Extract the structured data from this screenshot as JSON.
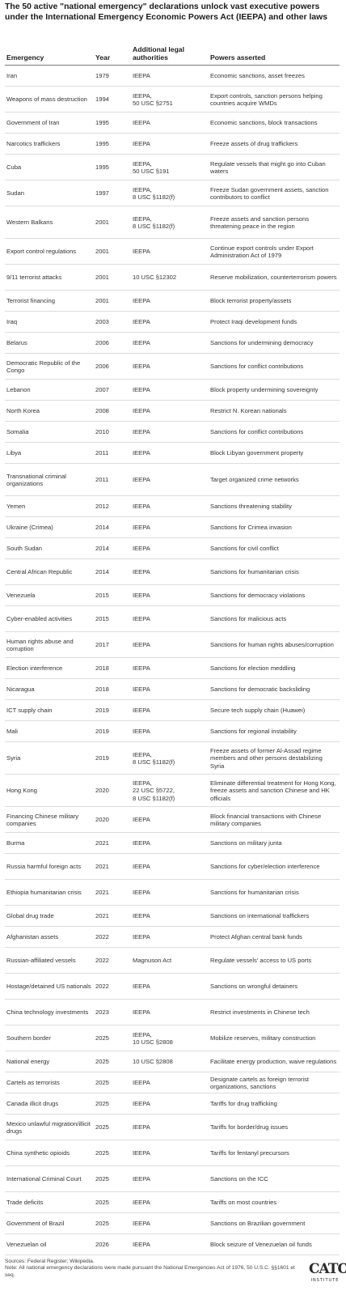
{
  "title": "The 50 active \"national emergency\" declarations unlock vast executive powers under the International Emergency Economic Powers Act (IEEPA) and other laws",
  "columns": [
    "Emergency",
    "Year",
    "Additional legal authorities",
    "Powers asserted"
  ],
  "rows": [
    {
      "emergency": "Iran",
      "year": "1979",
      "authorities": "IEEPA",
      "powers": "Economic sanctions, asset freezes"
    },
    {
      "emergency": "Weapons of mass destruction",
      "year": "1994",
      "authorities": "IEEPA,\n50 USC §2751",
      "powers": "Export controls, sanction persons helping countries acquire WMDs"
    },
    {
      "emergency": "Government of Iran",
      "year": "1995",
      "authorities": "IEEPA",
      "powers": "Economic sanctions, block transactions"
    },
    {
      "emergency": "Narcotics traffickers",
      "year": "1995",
      "authorities": "IEEPA",
      "powers": "Freeze assets of drug traffickers"
    },
    {
      "emergency": "Cuba",
      "year": "1995",
      "authorities": "IEEPA,\n50 USC §191",
      "powers": "Regulate vessels that might go into Cuban waters"
    },
    {
      "emergency": "Sudan",
      "year": "1997",
      "authorities": "IEEPA,\n8 USC §1182(f)",
      "powers": "Freeze Sudan government assets, sanction contributors to conflict"
    },
    {
      "emergency": "Western Balkans",
      "year": "2001",
      "authorities": "IEEPA,\n8 USC §1182(f)",
      "powers": "Freeze assets and sanction persons threatening peace in the region"
    },
    {
      "emergency": "Export control regulations",
      "year": "2001",
      "authorities": "IEEPA",
      "powers": "Continue export controls under Export Administration Act of 1979"
    },
    {
      "emergency": "9/11 terrorist attacks",
      "year": "2001",
      "authorities": "10 USC §12302",
      "powers": "Reserve mobilization, counterterrorism powers"
    },
    {
      "emergency": "Terrorist financing",
      "year": "2001",
      "authorities": "IEEPA",
      "powers": "Block terrorist property/assets"
    },
    {
      "emergency": "Iraq",
      "year": "2003",
      "authorities": "IEEPA",
      "powers": "Protect Iraqi development funds"
    },
    {
      "emergency": "Belarus",
      "year": "2006",
      "authorities": "IEEPA",
      "powers": "Sanctions for undermining democracy"
    },
    {
      "emergency": "Democratic Republic of the Congo",
      "year": "2006",
      "authorities": "IEEPA",
      "powers": "Sanctions for conflict contributions"
    },
    {
      "emergency": "Lebanon",
      "year": "2007",
      "authorities": "IEEPA",
      "powers": "Block property undermining sovereignty"
    },
    {
      "emergency": "North Korea",
      "year": "2008",
      "authorities": "IEEPA",
      "powers": "Restrict N. Korean nationals"
    },
    {
      "emergency": "Somalia",
      "year": "2010",
      "authorities": "IEEPA",
      "powers": "Sanctions for conflict contributions"
    },
    {
      "emergency": "Libya",
      "year": "2011",
      "authorities": "IEEPA",
      "powers": "Block Libyan government property"
    },
    {
      "emergency": "Transnational criminal organizations",
      "year": "2011",
      "authorities": "IEEPA",
      "powers": "Target organized crime networks"
    },
    {
      "emergency": "Yemen",
      "year": "2012",
      "authorities": "IEEPA",
      "powers": "Sanctions threatening stability"
    },
    {
      "emergency": "Ukraine (Crimea)",
      "year": "2014",
      "authorities": "IEEPA",
      "powers": "Sanctions for Crimea invasion"
    },
    {
      "emergency": "South Sudan",
      "year": "2014",
      "authorities": "IEEPA",
      "powers": "Sanctions for civil conflict"
    },
    {
      "emergency": "Central African Republic",
      "year": "2014",
      "authorities": "IEEPA",
      "powers": "Sanctions for humanitarian crisis"
    },
    {
      "emergency": "Venezuela",
      "year": "2015",
      "authorities": "IEEPA",
      "powers": "Sanctions for democracy violations"
    },
    {
      "emergency": "Cyber-enabled activities",
      "year": "2015",
      "authorities": "IEEPA",
      "powers": "Sanctions for malicious acts"
    },
    {
      "emergency": "Human rights abuse and corruption",
      "year": "2017",
      "authorities": "IEEPA",
      "powers": "Sanctions for human rights abuses/corruption"
    },
    {
      "emergency": "Election interference",
      "year": "2018",
      "authorities": "IEEPA",
      "powers": "Sanctions for election meddling"
    },
    {
      "emergency": "Nicaragua",
      "year": "2018",
      "authorities": "IEEPA",
      "powers": "Sanctions for democratic backsliding"
    },
    {
      "emergency": "ICT supply chain",
      "year": "2019",
      "authorities": "IEEPA",
      "powers": "Secure tech supply chain (Huawei)"
    },
    {
      "emergency": "Mali",
      "year": "2019",
      "authorities": "IEEPA",
      "powers": "Sanctions for regional instability"
    },
    {
      "emergency": "Syria",
      "year": "2019",
      "authorities": "IEEPA,\n8 USC §1182(f)",
      "powers": "Freeze assets of former Al-Assad regime members and other persons destabilizing Syria"
    },
    {
      "emergency": "Hong Kong",
      "year": "2020",
      "authorities": "IEEPA,\n22 USC §5722,\n8 USC §1182(f)",
      "powers": "Eliminate differential treatment for Hong Kong, freeze assets and sanction Chinese and HK officials"
    },
    {
      "emergency": "Financing Chinese military companies",
      "year": "2020",
      "authorities": "IEEPA",
      "powers": "Block financial transactions with Chinese military companies"
    },
    {
      "emergency": "Burma",
      "year": "2021",
      "authorities": "IEEPA",
      "powers": "Sanctions on military junta"
    },
    {
      "emergency": "Russia harmful foreign acts",
      "year": "2021",
      "authorities": "IEEPA",
      "powers": "Sanctions for cyber/election interference"
    },
    {
      "emergency": "Ethiopia humanitarian crisis",
      "year": "2021",
      "authorities": "IEEPA",
      "powers": "Sanctions for humanitarian crisis"
    },
    {
      "emergency": "Global drug trade",
      "year": "2021",
      "authorities": "IEEPA",
      "powers": "Sanctions on international traffickers"
    },
    {
      "emergency": "Afghanistan assets",
      "year": "2022",
      "authorities": "IEEPA",
      "powers": "Protect Afghan central bank funds"
    },
    {
      "emergency": "Russian-affiliated vessels",
      "year": "2022",
      "authorities": "Magnuson Act",
      "powers": "Regulate vessels' access to US ports"
    },
    {
      "emergency": "Hostage/detained US nationals",
      "year": "2022",
      "authorities": "IEEPA",
      "powers": "Sanctions on wrongful detainers"
    },
    {
      "emergency": "China technology investments",
      "year": "2023",
      "authorities": "IEEPA",
      "powers": "Restrict investments in Chinese tech"
    },
    {
      "emergency": "Southern border",
      "year": "2025",
      "authorities": "IEEPA,\n10 USC §2808",
      "powers": "Mobilize reserves, military construction"
    },
    {
      "emergency": "National energy",
      "year": "2025",
      "authorities": "10 USC §2808",
      "powers": "Facilitate energy production, waive regulations"
    },
    {
      "emergency": "Cartels as terrorists",
      "year": "2025",
      "authorities": "IEEPA",
      "powers": "Designate cartels as foreign terrorist organizations, sanctions"
    },
    {
      "emergency": "Canada illicit drugs",
      "year": "2025",
      "authorities": "IEEPA",
      "powers": "Tariffs for drug trafficking"
    },
    {
      "emergency": "Mexico unlawful migration/illicit drugs",
      "year": "2025",
      "authorities": "IEEPA",
      "powers": "Tariffs for border/drug issues"
    },
    {
      "emergency": "China synthetic opioids",
      "year": "2025",
      "authorities": "IEEPA",
      "powers": "Tariffs for fentanyl precursors"
    },
    {
      "emergency": "International Criminal Court",
      "year": "2025",
      "authorities": "IEEPA",
      "powers": "Sanctions on the ICC"
    },
    {
      "emergency": "Trade deficits",
      "year": "2025",
      "authorities": "IEEPA",
      "powers": "Tariffs on most countries"
    },
    {
      "emergency": "Government of Brazil",
      "year": "2025",
      "authorities": "IEEPA",
      "powers": "Sanctions on Brazilian government"
    },
    {
      "emergency": "Venezuelan oil",
      "year": "2026",
      "authorities": "IEEPA",
      "powers": "Block seizure of Venezuelan oil funds"
    }
  ],
  "footer": {
    "sources": "Sources: Federal Register; Wikipedia.",
    "note": "Note: All national emergency declarations were made pursuant the National Emergencies Act of 1976, 50 U.S.C. §§1601 et seq."
  },
  "logo": {
    "mark": "CATO",
    "sub": "INSTITUTE"
  }
}
